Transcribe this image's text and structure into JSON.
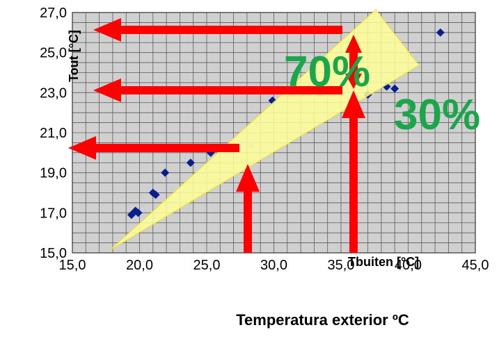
{
  "chart_data": {
    "type": "scatter",
    "xlim": [
      15,
      45
    ],
    "ylim": [
      15,
      27
    ],
    "x_ticks": [
      "15,0",
      "20,0",
      "25,0",
      "30,0",
      "35,0",
      "40,0",
      "45,0"
    ],
    "y_ticks": [
      "15,0",
      "17,0",
      "19,0",
      "21,0",
      "23,0",
      "25,0",
      "27,0"
    ],
    "xlabel": "Tbuiten [°C]",
    "ylabel": "Tout [°C]",
    "grid": true,
    "points": [
      {
        "x": 19.4,
        "y": 16.9
      },
      {
        "x": 19.7,
        "y": 17.1
      },
      {
        "x": 19.9,
        "y": 17.0
      },
      {
        "x": 21.0,
        "y": 18.0
      },
      {
        "x": 21.2,
        "y": 17.9
      },
      {
        "x": 21.9,
        "y": 19.0
      },
      {
        "x": 23.8,
        "y": 19.5
      },
      {
        "x": 25.3,
        "y": 20.0
      },
      {
        "x": 29.9,
        "y": 22.6
      },
      {
        "x": 37.0,
        "y": 22.9
      },
      {
        "x": 38.4,
        "y": 23.3
      },
      {
        "x": 39.0,
        "y": 23.2
      },
      {
        "x": 42.4,
        "y": 26.0
      }
    ],
    "highlight_point": {
      "x": 28.2,
      "y": 20.4
    },
    "annotations": {
      "pct_upper": "70%",
      "pct_lower": "30%"
    },
    "colors": {
      "points": "#0a1f8f",
      "highlight": "#8fb7d8",
      "arrows": "#ff0000",
      "wedge": "#ffff99",
      "wedge_edge": "#f0e020",
      "percent_text": "#1aa64a",
      "plot_background": "#d0d0d0",
      "gridline": "#5a5a5a"
    }
  },
  "caption": "Temperatura exterior ºC"
}
